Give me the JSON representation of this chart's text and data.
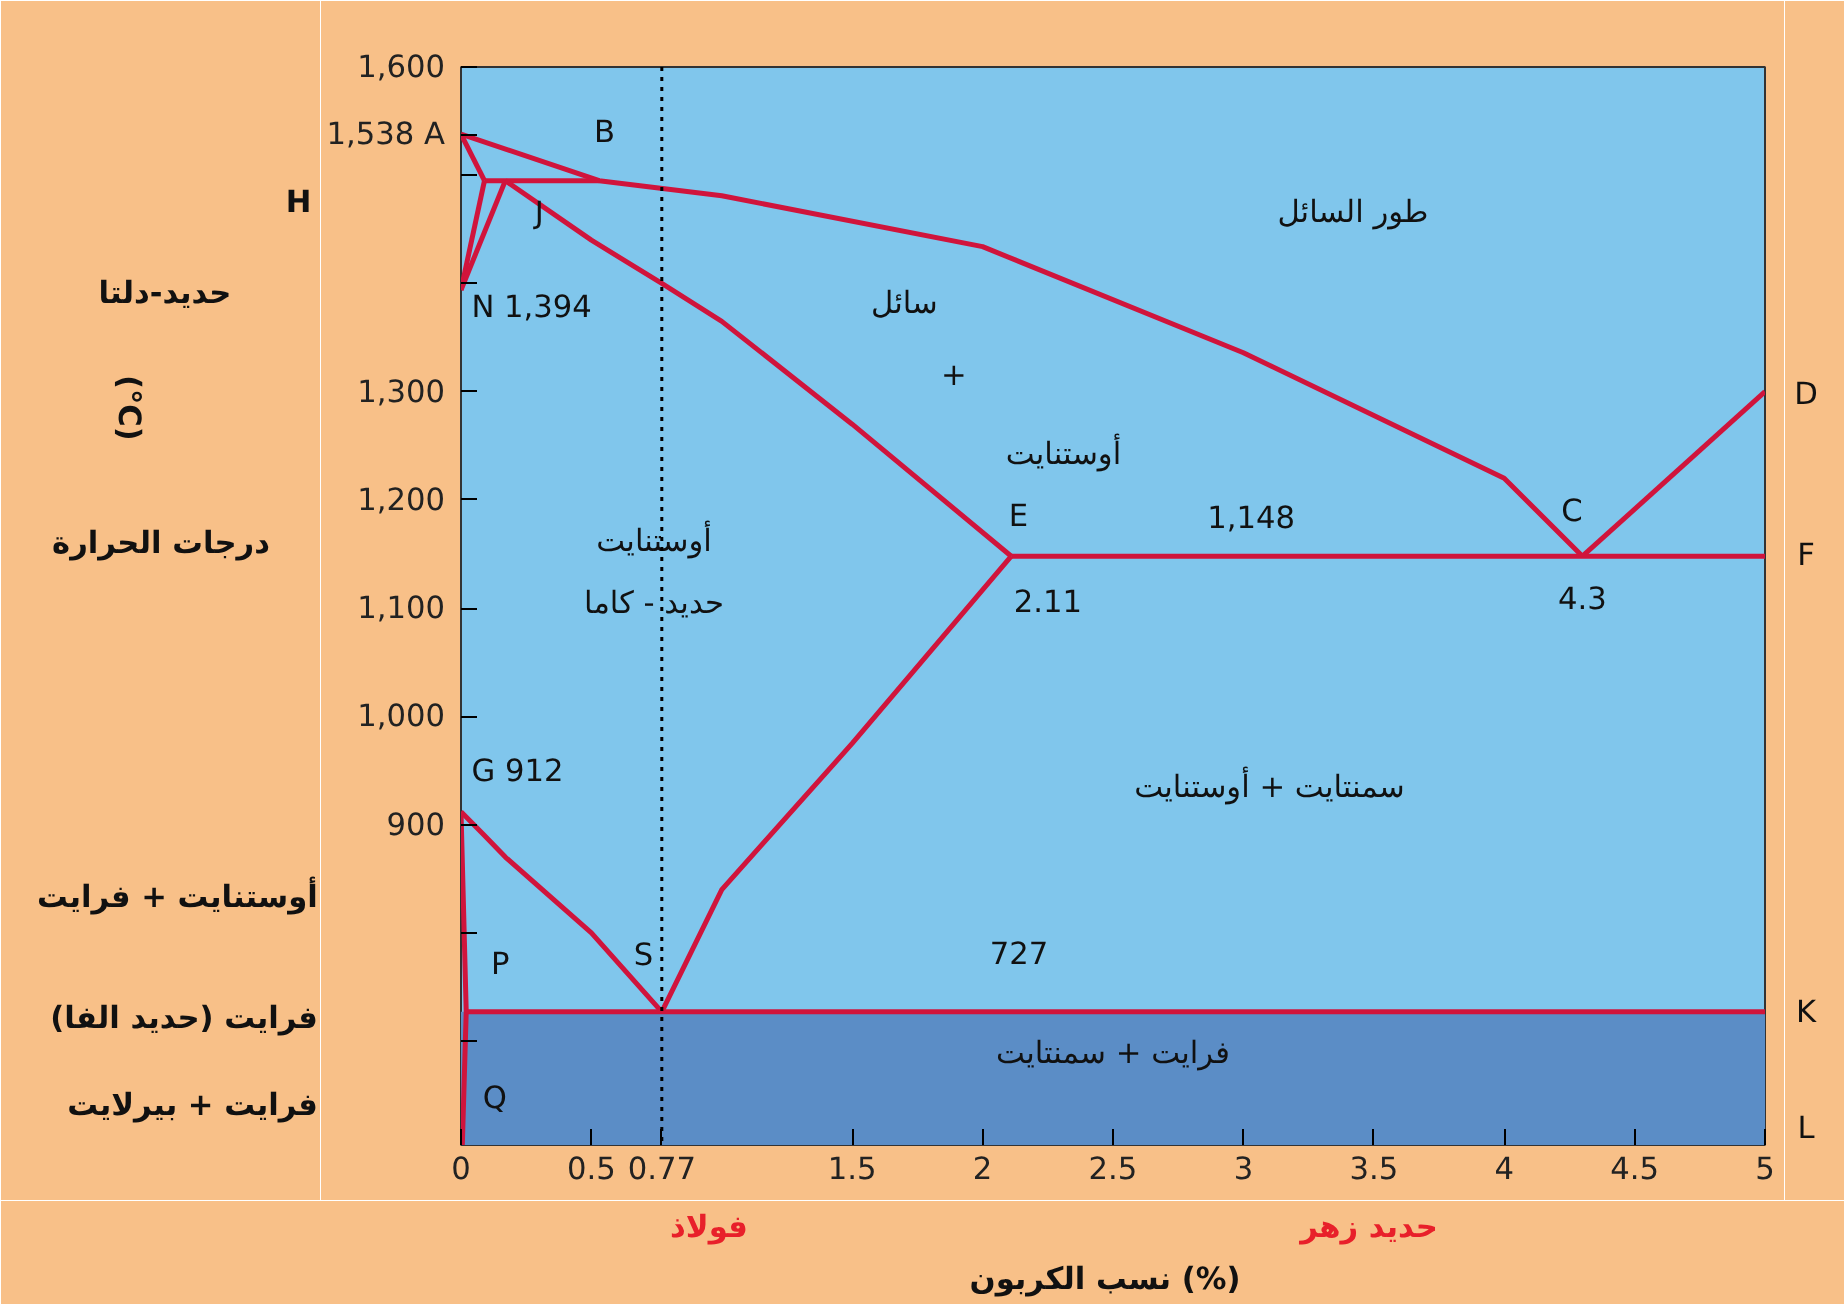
{
  "chart_data": {
    "type": "line",
    "xlabel": "نسب الكربون (%)",
    "xlim": [
      0,
      5
    ],
    "ylim": [
      604,
      1600
    ],
    "xticks": [
      0,
      0.5,
      0.77,
      1.5,
      2,
      2.5,
      3,
      3.5,
      4,
      4.5,
      5
    ],
    "yticks": [
      {
        "value": 1600,
        "label": "1,600"
      },
      {
        "value": 1538,
        "label": "1,538 A"
      },
      {
        "value": 1500,
        "label": null
      },
      {
        "value": 1400,
        "label": null
      },
      {
        "value": 1300,
        "label": "1,300"
      },
      {
        "value": 1200,
        "label": "1,200"
      },
      {
        "value": 1100,
        "label": "1,100"
      },
      {
        "value": 1000,
        "label": "1,000"
      },
      900,
      {
        "value": 800,
        "label": null
      },
      {
        "value": 700,
        "label": null
      }
    ],
    "grid": false,
    "marker": "none",
    "line_style": "solid",
    "bands": [
      {
        "axis": "y",
        "from": 604,
        "to": 727,
        "color": "#5b8dc6"
      }
    ],
    "ref_lines": [
      {
        "axis": "x",
        "value": 0.77,
        "color": "#000000",
        "line_style": "dotted"
      }
    ],
    "series": [
      {
        "color": "#d0143c",
        "x": [
          0,
          0.53,
          1,
          2,
          3,
          4,
          4.3
        ],
        "values": [
          1538,
          1495,
          1481,
          1434,
          1336,
          1220,
          1148
        ]
      },
      {
        "color": "#d0143c",
        "x": [
          4.3,
          5
        ],
        "values": [
          1148,
          1300
        ]
      },
      {
        "color": "#d0143c",
        "x": [
          2.11,
          5
        ],
        "values": [
          1148,
          1148
        ]
      },
      {
        "color": "#d0143c",
        "x": [
          0.09,
          0.53
        ],
        "values": [
          1495,
          1495
        ]
      },
      {
        "color": "#d0143c",
        "x": [
          0,
          0.09
        ],
        "values": [
          1538,
          1495
        ]
      },
      {
        "color": "#d0143c",
        "x": [
          0.09,
          0
        ],
        "values": [
          1495,
          1394
        ]
      },
      {
        "color": "#d0143c",
        "x": [
          0,
          0.17
        ],
        "values": [
          1394,
          1495
        ]
      },
      {
        "color": "#d0143c",
        "x": [
          0.17,
          0.5,
          0.77,
          1,
          1.5,
          2.11
        ],
        "values": [
          1495,
          1440,
          1400,
          1365,
          1270,
          1148
        ]
      },
      {
        "color": "#d0143c",
        "x": [
          0,
          0.09,
          0.17,
          0.5,
          0.77
        ],
        "values": [
          912,
          890,
          870,
          800,
          727
        ]
      },
      {
        "color": "#d0143c",
        "x": [
          0.77,
          1,
          1.5,
          2.11
        ],
        "values": [
          727,
          840,
          975,
          1148
        ]
      },
      {
        "color": "#d0143c",
        "x": [
          0.02,
          5
        ],
        "values": [
          727,
          727
        ]
      },
      {
        "color": "#d0143c",
        "x": [
          0,
          0.01,
          0.02,
          0.005
        ],
        "values": [
          912,
          820,
          727,
          604
        ]
      }
    ],
    "annotations": [
      "B",
      "H",
      "J",
      "N 1,394",
      "طور السائل",
      "سائل",
      "+",
      "أوستنايت",
      "E",
      "1,148",
      "C",
      "D",
      "F",
      "2.11",
      "4.3",
      "أوستنايت",
      "حديد - كاما",
      "G 912",
      "سمنتايت + أوستنايت",
      "P",
      "S",
      "727",
      "K",
      "فرايت + سمنتايت",
      "Q",
      "L",
      "حديد-دلتا",
      "أوستنايت + فرايت",
      "فرايت (حديد الفا)",
      "فرايت + بيرلايت",
      "فولاذ",
      "حديد زهر",
      "(°C)",
      "درجات الحرارة"
    ]
  }
}
